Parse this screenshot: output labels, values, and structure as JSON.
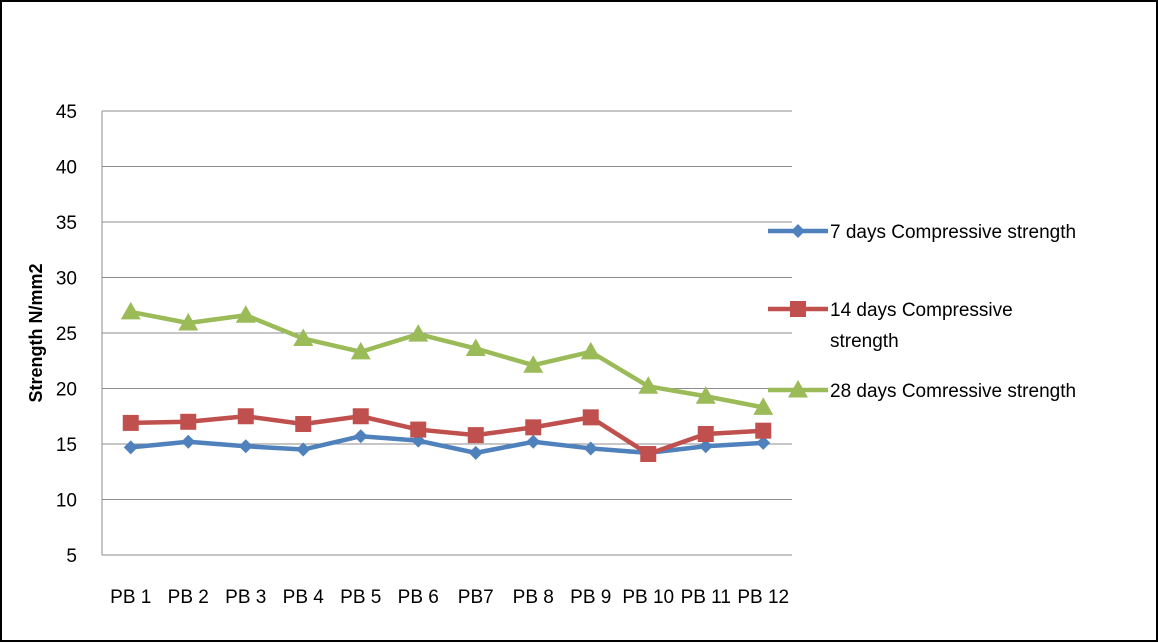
{
  "chart_data": {
    "type": "line",
    "categories": [
      "PB 1",
      "PB 2",
      "PB 3",
      "PB 4",
      "PB 5",
      "PB 6",
      "PB7",
      "PB 8",
      "PB 9",
      "PB 10",
      "PB 11",
      "PB 12"
    ],
    "ylabel": "Strength N/mm2",
    "xlabel": "",
    "ylim": [
      5,
      45
    ],
    "yticks": [
      5,
      10,
      15,
      20,
      25,
      30,
      35,
      40,
      45
    ],
    "grid": "horizontal",
    "legend_position": "right",
    "series": [
      {
        "name": "7 days Compressive strength",
        "legend_lines": [
          "7 days Compressive strength"
        ],
        "color": "#4F81BD",
        "marker": "diamond",
        "values": [
          14.7,
          15.2,
          14.8,
          14.5,
          15.7,
          15.3,
          14.2,
          15.2,
          14.6,
          14.2,
          14.8,
          15.1
        ]
      },
      {
        "name": "14 days Compressive strength",
        "legend_lines": [
          "14 days Compressive",
          "strength"
        ],
        "color": "#C0504D",
        "marker": "square",
        "values": [
          16.9,
          17.0,
          17.5,
          16.8,
          17.5,
          16.3,
          15.8,
          16.5,
          17.4,
          14.1,
          15.9,
          16.2
        ]
      },
      {
        "name": "28 days Comressive strength",
        "legend_lines": [
          "28 days Comressive strength"
        ],
        "color": "#9BBB59",
        "marker": "triangle",
        "values": [
          26.9,
          25.9,
          26.6,
          24.5,
          23.3,
          24.9,
          23.6,
          22.1,
          23.3,
          20.2,
          19.3,
          18.3
        ]
      }
    ]
  }
}
